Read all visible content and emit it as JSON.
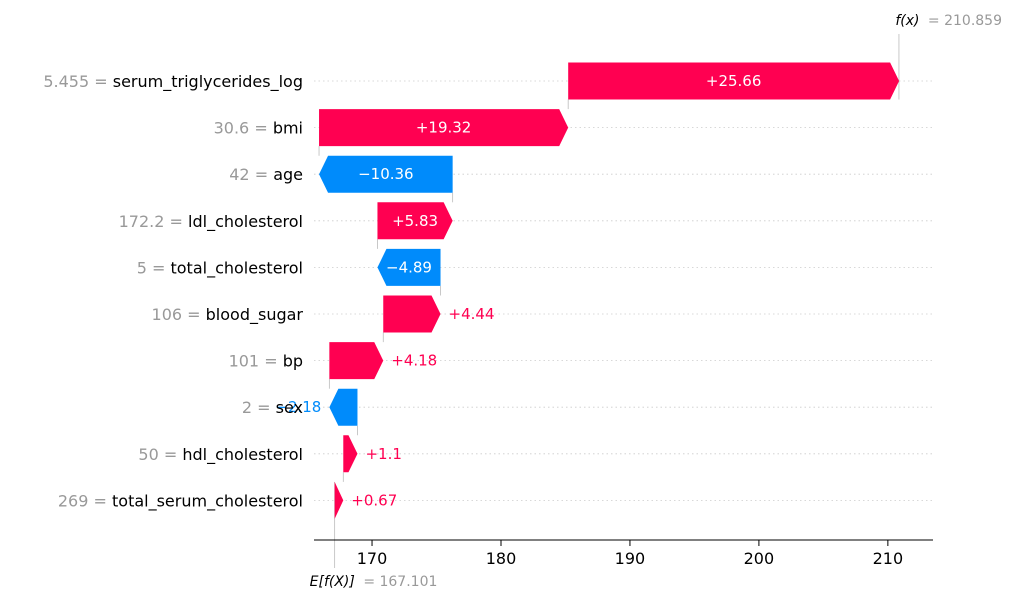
{
  "colors": {
    "positive": "#ff0051",
    "negative": "#008bfb",
    "gridline": "#cccccc",
    "muted": "#999999",
    "text": "#000000"
  },
  "chart_data": {
    "type": "waterfall",
    "base_value": 167.101,
    "base_label": "E[f(X)]",
    "base_value_text": "= 167.101",
    "output_value": 210.859,
    "output_label": "f(x)",
    "output_value_text": "= 210.859",
    "xlim": [
      165.5,
      213.5
    ],
    "x_ticks": [
      170,
      180,
      190,
      200,
      210
    ],
    "features": [
      {
        "feature_value": "5.455",
        "name": "serum_triglycerides_log",
        "contribution": 25.66,
        "label": "+25.66"
      },
      {
        "feature_value": "30.6",
        "name": "bmi",
        "contribution": 19.32,
        "label": "+19.32"
      },
      {
        "feature_value": "42",
        "name": "age",
        "contribution": -10.36,
        "label": "−10.36"
      },
      {
        "feature_value": "172.2",
        "name": "ldl_cholesterol",
        "contribution": 5.83,
        "label": "+5.83"
      },
      {
        "feature_value": "5",
        "name": "total_cholesterol",
        "contribution": -4.89,
        "label": "−4.89"
      },
      {
        "feature_value": "106",
        "name": "blood_sugar",
        "contribution": 4.44,
        "label": "+4.44"
      },
      {
        "feature_value": "101",
        "name": "bp",
        "contribution": 4.18,
        "label": "+4.18"
      },
      {
        "feature_value": "2",
        "name": "sex",
        "contribution": -2.18,
        "label": "−2.18"
      },
      {
        "feature_value": "50",
        "name": "hdl_cholesterol",
        "contribution": 1.1,
        "label": "+1.1"
      },
      {
        "feature_value": "269",
        "name": "total_serum_cholesterol",
        "contribution": 0.67,
        "label": "+0.67"
      }
    ]
  }
}
